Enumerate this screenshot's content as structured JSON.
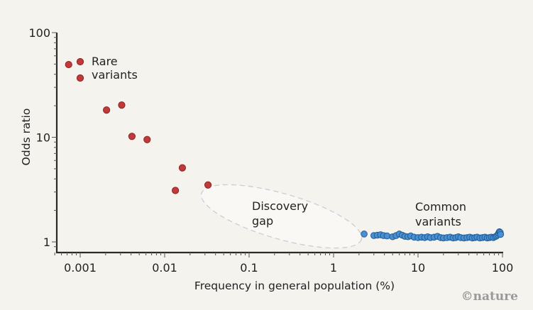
{
  "chart_data": {
    "type": "scatter",
    "title": "",
    "xlabel": "Frequency in general population (%)",
    "ylabel": "Odds ratio",
    "x_scale": "log",
    "y_scale": "log",
    "xlim": [
      0.0005,
      100
    ],
    "ylim": [
      0.9,
      100
    ],
    "x_ticks": [
      0.001,
      0.01,
      0.1,
      1,
      10,
      100
    ],
    "x_tick_labels": [
      "0.001",
      "0.01",
      "0.1",
      "1",
      "10",
      "100"
    ],
    "y_ticks": [
      1,
      10,
      100
    ],
    "y_tick_labels": [
      "1",
      "10",
      "100"
    ],
    "grid": false,
    "series": [
      {
        "name": "Rare variants",
        "color": "#c0393b",
        "edge_color": "#8e2224",
        "points": [
          {
            "x": 0.00073,
            "y": 49.5
          },
          {
            "x": 0.001,
            "y": 52.7
          },
          {
            "x": 0.001,
            "y": 36.8
          },
          {
            "x": 0.00205,
            "y": 18.2
          },
          {
            "x": 0.0031,
            "y": 20.3
          },
          {
            "x": 0.0041,
            "y": 10.2
          },
          {
            "x": 0.0062,
            "y": 9.5
          },
          {
            "x": 0.0134,
            "y": 3.1
          },
          {
            "x": 0.0162,
            "y": 5.1
          },
          {
            "x": 0.0326,
            "y": 3.5
          }
        ]
      },
      {
        "name": "Common variants",
        "color": "#4a8fd0",
        "edge_color": "#1f5c99",
        "points": [
          {
            "x": 2.3,
            "y": 1.19
          },
          {
            "x": 3.0,
            "y": 1.15
          },
          {
            "x": 3.3,
            "y": 1.16
          },
          {
            "x": 3.6,
            "y": 1.17
          },
          {
            "x": 3.9,
            "y": 1.15
          },
          {
            "x": 4.3,
            "y": 1.14
          },
          {
            "x": 5.0,
            "y": 1.12
          },
          {
            "x": 5.5,
            "y": 1.15
          },
          {
            "x": 6.0,
            "y": 1.19
          },
          {
            "x": 6.5,
            "y": 1.16
          },
          {
            "x": 7.0,
            "y": 1.13
          },
          {
            "x": 7.6,
            "y": 1.12
          },
          {
            "x": 8.2,
            "y": 1.14
          },
          {
            "x": 9.0,
            "y": 1.11
          },
          {
            "x": 10,
            "y": 1.1
          },
          {
            "x": 11,
            "y": 1.11
          },
          {
            "x": 12,
            "y": 1.1
          },
          {
            "x": 13,
            "y": 1.12
          },
          {
            "x": 14,
            "y": 1.1
          },
          {
            "x": 15.5,
            "y": 1.11
          },
          {
            "x": 17,
            "y": 1.13
          },
          {
            "x": 18.5,
            "y": 1.1
          },
          {
            "x": 20,
            "y": 1.09
          },
          {
            "x": 22,
            "y": 1.1
          },
          {
            "x": 24,
            "y": 1.11
          },
          {
            "x": 26,
            "y": 1.09
          },
          {
            "x": 28,
            "y": 1.1
          },
          {
            "x": 30,
            "y": 1.12
          },
          {
            "x": 32,
            "y": 1.1
          },
          {
            "x": 35,
            "y": 1.09
          },
          {
            "x": 38,
            "y": 1.1
          },
          {
            "x": 41,
            "y": 1.11
          },
          {
            "x": 44,
            "y": 1.09
          },
          {
            "x": 47,
            "y": 1.1
          },
          {
            "x": 50,
            "y": 1.11
          },
          {
            "x": 54,
            "y": 1.09
          },
          {
            "x": 58,
            "y": 1.1
          },
          {
            "x": 62,
            "y": 1.11
          },
          {
            "x": 66,
            "y": 1.09
          },
          {
            "x": 70,
            "y": 1.1
          },
          {
            "x": 74,
            "y": 1.11
          },
          {
            "x": 78,
            "y": 1.1
          },
          {
            "x": 82,
            "y": 1.12
          },
          {
            "x": 85,
            "y": 1.14
          },
          {
            "x": 88,
            "y": 1.17
          },
          {
            "x": 90,
            "y": 1.21
          },
          {
            "x": 92,
            "y": 1.25
          },
          {
            "x": 94,
            "y": 1.23
          },
          {
            "x": 95,
            "y": 1.18
          }
        ]
      }
    ],
    "annotations": [
      {
        "id": "rare",
        "lines": [
          "Rare",
          "variants"
        ],
        "near": "top-left cluster"
      },
      {
        "id": "gap",
        "lines": [
          "Discovery",
          "gap"
        ],
        "region": {
          "x_from": 0.025,
          "x_to": 2.0,
          "y_from": 1.0,
          "y_to": 3.0
        },
        "style": "dashed ellipse"
      },
      {
        "id": "common",
        "lines": [
          "Common",
          "variants"
        ],
        "near": "bottom-right cluster"
      }
    ],
    "legend": "none"
  },
  "credit": "©nature"
}
